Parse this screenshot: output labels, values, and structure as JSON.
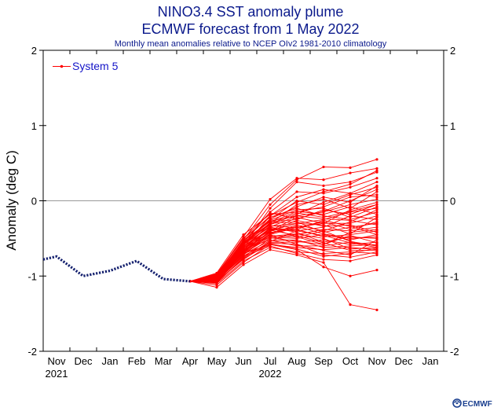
{
  "colors": {
    "title": "#0b1a8c",
    "observed": "#14206e",
    "ensemble": "#ff0000",
    "zero_line": "#9a9a9a",
    "legend_text": "#1515c8",
    "logo": "#1a3f8f"
  },
  "logo": {
    "text": "ECMWF",
    "icon": "ecmwf-logo-icon"
  },
  "chart_data": {
    "type": "line",
    "title": "NINO3.4 SST anomaly plume",
    "subtitle": "ECMWF forecast from 1 May 2022",
    "subtitle2": "Monthly mean anomalies relative to NCEP OIv2 1981-2010 climatology",
    "ylabel": "Anomaly (deg C)",
    "ylim": [
      -2,
      2
    ],
    "yticks": [
      -2,
      -1,
      0,
      1,
      2
    ],
    "ytick_labels": [
      "-2",
      "-1",
      "0",
      "1",
      "2"
    ],
    "x_months": [
      "Nov",
      "Dec",
      "Jan",
      "Feb",
      "Mar",
      "Apr",
      "May",
      "Jun",
      "Jul",
      "Aug",
      "Sep",
      "Oct",
      "Nov",
      "Dec",
      "Jan"
    ],
    "x_years": [
      {
        "label": "2021",
        "month_index": 0
      },
      {
        "label": "2022",
        "month_index": 8
      }
    ],
    "zero_line": true,
    "legend": {
      "label": "System 5",
      "position": "top-left"
    },
    "observed": {
      "x": [
        -0.5,
        0,
        1,
        2,
        3,
        4,
        5
      ],
      "y": [
        -0.78,
        -0.74,
        -1.0,
        -0.93,
        -0.8,
        -1.04,
        -1.07
      ]
    },
    "ensemble": {
      "name": "System 5",
      "x": [
        5,
        6,
        7,
        8,
        9,
        10,
        11,
        12
      ],
      "members": [
        [
          -1.07,
          -1.02,
          -0.52,
          -0.05,
          0.28,
          0.45,
          0.44,
          0.55
        ],
        [
          -1.07,
          -0.98,
          -0.48,
          0.02,
          0.3,
          0.28,
          0.37,
          0.43
        ],
        [
          -1.07,
          -0.97,
          -0.6,
          -0.1,
          0.25,
          0.2,
          0.25,
          0.38
        ],
        [
          -1.07,
          -1.0,
          -0.55,
          -0.15,
          0.12,
          0.1,
          0.18,
          0.3
        ],
        [
          -1.07,
          -1.03,
          -0.62,
          -0.2,
          0.05,
          0.15,
          0.1,
          0.25
        ],
        [
          -1.07,
          -1.05,
          -0.58,
          -0.25,
          0.0,
          -0.05,
          0.08,
          0.18
        ],
        [
          -1.07,
          -1.08,
          -0.65,
          -0.3,
          -0.05,
          0.02,
          -0.1,
          0.12
        ],
        [
          -1.07,
          -0.96,
          -0.45,
          -0.18,
          -0.15,
          -0.08,
          0.05,
          0.08
        ],
        [
          -1.07,
          -1.02,
          -0.7,
          -0.35,
          -0.2,
          -0.15,
          -0.05,
          0.02
        ],
        [
          -1.07,
          -1.01,
          -0.52,
          -0.28,
          -0.25,
          -0.12,
          -0.18,
          -0.05
        ],
        [
          -1.07,
          -1.04,
          -0.68,
          -0.4,
          -0.3,
          -0.25,
          -0.15,
          -0.1
        ],
        [
          -1.07,
          -0.99,
          -0.5,
          -0.22,
          -0.1,
          -0.2,
          -0.25,
          -0.15
        ],
        [
          -1.07,
          -1.06,
          -0.72,
          -0.45,
          -0.35,
          -0.3,
          -0.3,
          -0.2
        ],
        [
          -1.07,
          -1.03,
          -0.6,
          -0.38,
          -0.4,
          -0.35,
          -0.2,
          -0.25
        ],
        [
          -1.07,
          -1.0,
          -0.55,
          -0.3,
          -0.28,
          -0.42,
          -0.35,
          -0.3
        ],
        [
          -1.07,
          -1.09,
          -0.75,
          -0.5,
          -0.45,
          -0.38,
          -0.4,
          -0.35
        ],
        [
          -1.07,
          -1.02,
          -0.62,
          -0.42,
          -0.38,
          -0.48,
          -0.45,
          -0.4
        ],
        [
          -1.07,
          -1.05,
          -0.66,
          -0.48,
          -0.5,
          -0.45,
          -0.52,
          -0.45
        ],
        [
          -1.07,
          -0.98,
          -0.58,
          -0.35,
          -0.42,
          -0.55,
          -0.48,
          -0.5
        ],
        [
          -1.07,
          -1.07,
          -0.78,
          -0.55,
          -0.55,
          -0.52,
          -0.58,
          -0.55
        ],
        [
          -1.07,
          -1.01,
          -0.64,
          -0.52,
          -0.6,
          -0.6,
          -0.55,
          -0.6
        ],
        [
          -1.07,
          -1.03,
          -0.7,
          -0.58,
          -0.62,
          -0.65,
          -0.62,
          -0.65
        ],
        [
          -1.07,
          -1.1,
          -0.8,
          -0.62,
          -0.68,
          -0.7,
          -0.68,
          -0.7
        ],
        [
          -1.07,
          -1.04,
          -0.68,
          -0.45,
          -0.58,
          -0.72,
          -0.75,
          -0.68
        ],
        [
          -1.07,
          -1.06,
          -0.74,
          -0.6,
          -0.7,
          -0.78,
          -0.8,
          -0.72
        ],
        [
          -1.07,
          -1.12,
          -0.82,
          -0.58,
          -0.65,
          -0.88,
          -1.0,
          -0.92
        ],
        [
          -1.07,
          -1.15,
          -0.85,
          -0.65,
          -0.72,
          -0.82,
          -1.38,
          -1.45
        ],
        [
          -1.07,
          -1.02,
          -0.56,
          -0.32,
          -0.18,
          -0.02,
          0.1,
          0.05
        ],
        [
          -1.07,
          -1.0,
          -0.6,
          -0.4,
          -0.22,
          -0.3,
          -0.12,
          -0.02
        ],
        [
          -1.07,
          -1.05,
          -0.67,
          -0.44,
          -0.32,
          -0.4,
          -0.28,
          -0.12
        ],
        [
          -1.07,
          -0.99,
          -0.54,
          -0.26,
          -0.12,
          -0.1,
          -0.22,
          -0.08
        ],
        [
          -1.07,
          -1.04,
          -0.63,
          -0.36,
          -0.48,
          -0.58,
          -0.42,
          -0.38
        ],
        [
          -1.07,
          -1.08,
          -0.71,
          -0.53,
          -0.52,
          -0.62,
          -0.6,
          -0.58
        ],
        [
          -1.07,
          -1.01,
          -0.57,
          -0.24,
          -0.08,
          0.05,
          -0.02,
          0.2
        ],
        [
          -1.07,
          -1.03,
          -0.61,
          -0.33,
          -0.36,
          -0.28,
          -0.38,
          -0.28
        ],
        [
          -1.07,
          -1.06,
          -0.69,
          -0.47,
          -0.44,
          -0.5,
          -0.64,
          -0.62
        ],
        [
          -1.07,
          -1.02,
          -0.59,
          -0.29,
          -0.14,
          -0.18,
          -0.08,
          -0.18
        ],
        [
          -1.07,
          -1.04,
          -0.66,
          -0.41,
          -0.26,
          -0.34,
          -0.32,
          -0.42
        ],
        [
          -1.07,
          -1.07,
          -0.73,
          -0.56,
          -0.58,
          -0.66,
          -0.72,
          -0.52
        ],
        [
          -1.07,
          -1.0,
          -0.53,
          -0.2,
          -0.02,
          0.12,
          0.22,
          0.4
        ],
        [
          -1.07,
          -1.05,
          -0.64,
          -0.43,
          -0.34,
          -0.44,
          -0.5,
          -0.48
        ],
        [
          -1.07,
          -1.03,
          -0.61,
          -0.39,
          -0.46,
          -0.56,
          -0.66,
          -0.66
        ],
        [
          -1.07,
          -1.01,
          -0.56,
          -0.27,
          -0.2,
          -0.24,
          -0.26,
          -0.32
        ],
        [
          -1.07,
          -1.09,
          -0.76,
          -0.54,
          -0.4,
          -0.46,
          -0.56,
          -0.62
        ],
        [
          -1.07,
          -0.97,
          -0.5,
          -0.16,
          -0.24,
          -0.14,
          0.0,
          0.15
        ],
        [
          -1.07,
          -1.02,
          -0.58,
          -0.34,
          -0.3,
          -0.32,
          -0.44,
          -0.22
        ],
        [
          -1.07,
          -1.06,
          -0.7,
          -0.49,
          -0.54,
          -0.58,
          -0.46,
          -0.56
        ],
        [
          -1.07,
          -1.04,
          -0.65,
          -0.37,
          -0.38,
          -0.26,
          -0.34,
          -0.45
        ],
        [
          -1.07,
          -1.0,
          -0.57,
          -0.31,
          -0.16,
          -0.22,
          -0.14,
          -0.05
        ],
        [
          -1.07,
          -1.03,
          -0.62,
          -0.46,
          -0.48,
          -0.4,
          -0.54,
          -0.6
        ],
        [
          -1.07,
          -1.08,
          -0.77,
          -0.57,
          -0.64,
          -0.74,
          -0.7,
          -0.63
        ]
      ]
    }
  }
}
